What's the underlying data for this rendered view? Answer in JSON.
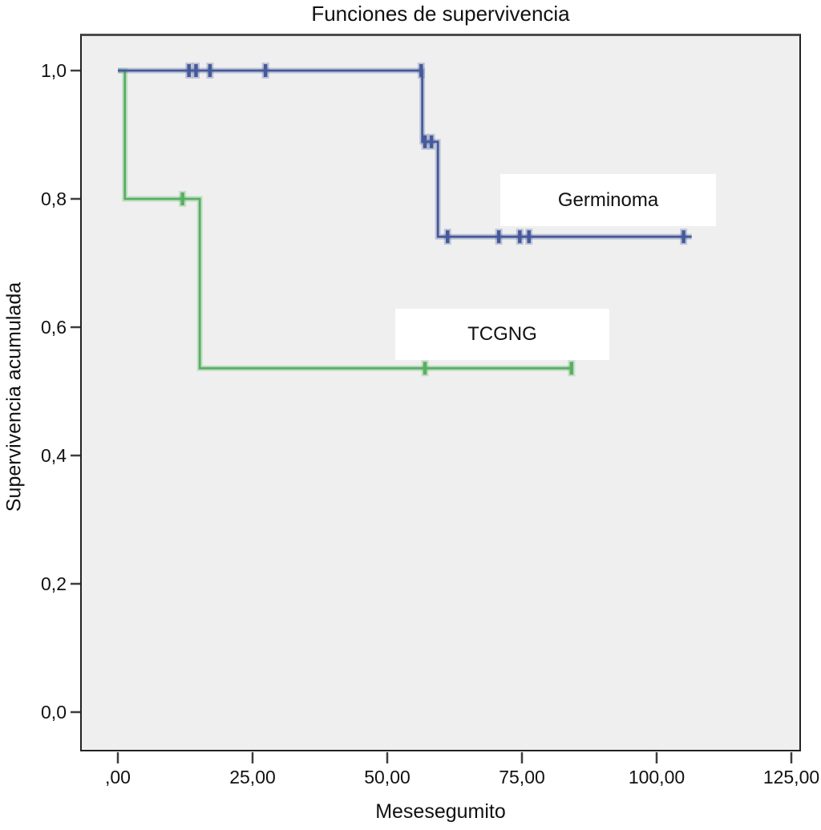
{
  "chart_data": {
    "type": "line",
    "subtype": "kaplan-meier-step",
    "title": "Funciones de supervivencia",
    "xlabel": "Mesesegumito",
    "ylabel": "Supervivencia acumulada",
    "xlim": [
      0,
      125
    ],
    "ylim": [
      0.0,
      1.0
    ],
    "grid": false,
    "legend_position": "inline-annotation-boxes",
    "plot_background": "#efefef",
    "x_ticks": {
      "values": [
        0,
        25,
        50,
        75,
        100,
        125
      ],
      "labels": [
        ",00",
        "25,00",
        "50,00",
        "75,00",
        "100,00",
        "125,00"
      ]
    },
    "y_ticks": {
      "values": [
        0.0,
        0.2,
        0.4,
        0.6,
        0.8,
        1.0
      ],
      "labels": [
        "0,0",
        "0,2",
        "0,4",
        "0,6",
        "0,8",
        "1,0"
      ]
    },
    "series": [
      {
        "name": "TCGNG",
        "color": "#57b062",
        "steps": [
          [
            0,
            1.0
          ],
          [
            1.3,
            1.0
          ],
          [
            1.3,
            0.8
          ],
          [
            15.2,
            0.8
          ],
          [
            15.2,
            0.536
          ],
          [
            84.5,
            0.536
          ]
        ],
        "censored": [
          [
            12,
            0.8
          ],
          [
            57,
            0.536
          ],
          [
            84.2,
            0.536
          ]
        ]
      },
      {
        "name": "Germinoma",
        "color": "#46599b",
        "steps": [
          [
            0,
            1.0
          ],
          [
            56.5,
            1.0
          ],
          [
            56.5,
            0.889
          ],
          [
            59.4,
            0.889
          ],
          [
            59.4,
            0.741
          ],
          [
            106.5,
            0.741
          ]
        ],
        "censored": [
          [
            13.2,
            1.0
          ],
          [
            14.5,
            1.0
          ],
          [
            17.1,
            1.0
          ],
          [
            27.4,
            1.0
          ],
          [
            56.3,
            1.0
          ],
          [
            57.0,
            0.889
          ],
          [
            58.2,
            0.889
          ],
          [
            61.2,
            0.741
          ],
          [
            70.7,
            0.741
          ],
          [
            74.6,
            0.741
          ],
          [
            76.3,
            0.741
          ],
          [
            105.0,
            0.741
          ]
        ]
      }
    ],
    "annotations": [
      {
        "text": "Germinoma",
        "x_range": [
          71.0,
          111.0
        ],
        "y_range": [
          0.757,
          0.839
        ]
      },
      {
        "text": "TCGNG",
        "x_range": [
          51.5,
          91.2
        ],
        "y_range": [
          0.549,
          0.629
        ]
      }
    ]
  }
}
